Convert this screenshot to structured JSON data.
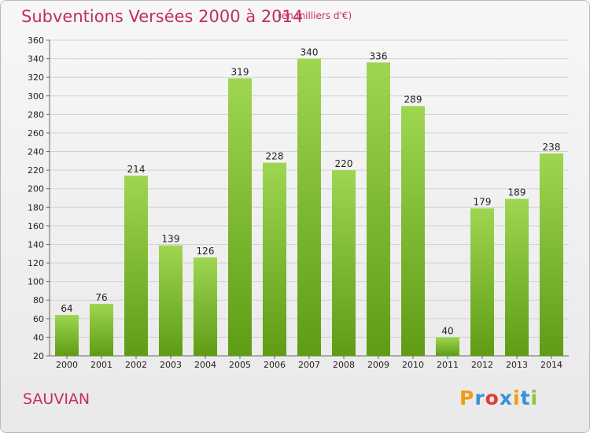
{
  "chart_data": {
    "type": "bar",
    "title": "Subventions Versées 2000 à 2014",
    "subtitle": "(en milliers d'€)",
    "categories": [
      "2000",
      "2001",
      "2002",
      "2003",
      "2004",
      "2005",
      "2006",
      "2007",
      "2008",
      "2009",
      "2010",
      "2011",
      "2012",
      "2013",
      "2014"
    ],
    "values": [
      64,
      76,
      214,
      139,
      126,
      319,
      228,
      340,
      220,
      336,
      289,
      40,
      179,
      189,
      238
    ],
    "ylim": [
      20,
      360
    ],
    "yticks": [
      20,
      40,
      60,
      80,
      100,
      120,
      140,
      160,
      180,
      200,
      220,
      240,
      260,
      280,
      300,
      320,
      340,
      360
    ],
    "grid": true,
    "bar_color_top": "#9ed652",
    "bar_color_bottom": "#5f9c14"
  },
  "commune": "SAUVIAN",
  "logo": {
    "letters": [
      "P",
      "r",
      "o",
      "x",
      "i",
      "t",
      "i"
    ],
    "colors": [
      "#f39c12",
      "#3a8fd9",
      "#e23a3a",
      "#3a8fd9",
      "#f39c12",
      "#3a8fd9",
      "#8cc63f"
    ]
  }
}
